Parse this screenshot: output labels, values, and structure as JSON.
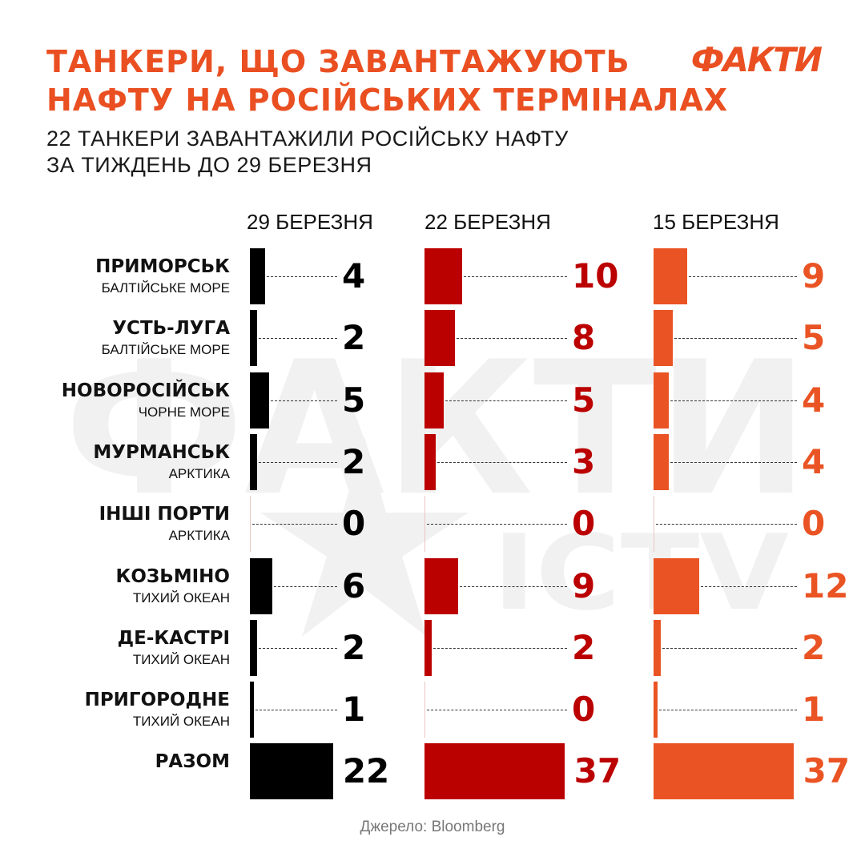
{
  "title": {
    "line1": "ТАНКЕРИ, ЩО ЗАВАНТАЖУЮТЬ",
    "line2": "НАФТУ НА РОСІЙСЬКИХ ТЕРМІНАЛАХ"
  },
  "subtitle": {
    "line1": "22 ТАНКЕРИ ЗАВАНТАЖИЛИ РОСІЙСЬКУ НАФТУ",
    "line2": "ЗА ТИЖДЕНЬ ДО 29 БЕРЕЗНЯ"
  },
  "logo": "ФАКТИ",
  "watermark": {
    "main": "ФАКТИ",
    "sub": "ICTV"
  },
  "source": "Джерело: Bloomberg",
  "colors": {
    "accent": "#ea4f22",
    "series_29": "#000000",
    "series_22": "#bb0000",
    "series_15": "#ea5424",
    "watermark": "#f1f1f1"
  },
  "chart_data": {
    "type": "bar",
    "orientation": "horizontal",
    "categories": [
      {
        "name": "ПРИМОРСЬК",
        "region": "БАЛТІЙСЬКЕ МОРЕ"
      },
      {
        "name": "УСТЬ-ЛУГА",
        "region": "БАЛТІЙСЬКЕ МОРЕ"
      },
      {
        "name": "НОВОРОСІЙСЬК",
        "region": "ЧОРНЕ МОРЕ"
      },
      {
        "name": "МУРМАНСЬК",
        "region": "АРКТИКА"
      },
      {
        "name": "ІНШІ ПОРТИ",
        "region": "АРКТИКА"
      },
      {
        "name": "КОЗЬМІНО",
        "region": "ТИХИЙ ОКЕАН"
      },
      {
        "name": "ДЕ-КАСТРІ",
        "region": "ТИХИЙ ОКЕАН"
      },
      {
        "name": "ПРИГОРОДНЕ",
        "region": "ТИХИЙ ОКЕАН"
      },
      {
        "name": "РАЗОМ",
        "region": ""
      }
    ],
    "series": [
      {
        "name": "29 БЕРЕЗНЯ",
        "color": "#000000",
        "values": [
          4,
          2,
          5,
          2,
          0,
          6,
          2,
          1,
          22
        ]
      },
      {
        "name": "22 БЕРЕЗНЯ",
        "color": "#bb0000",
        "values": [
          10,
          8,
          5,
          3,
          0,
          9,
          2,
          0,
          37
        ]
      },
      {
        "name": "15 БЕРЕЗНЯ",
        "color": "#ea5424",
        "values": [
          9,
          5,
          4,
          4,
          0,
          12,
          2,
          1,
          37
        ]
      }
    ]
  }
}
